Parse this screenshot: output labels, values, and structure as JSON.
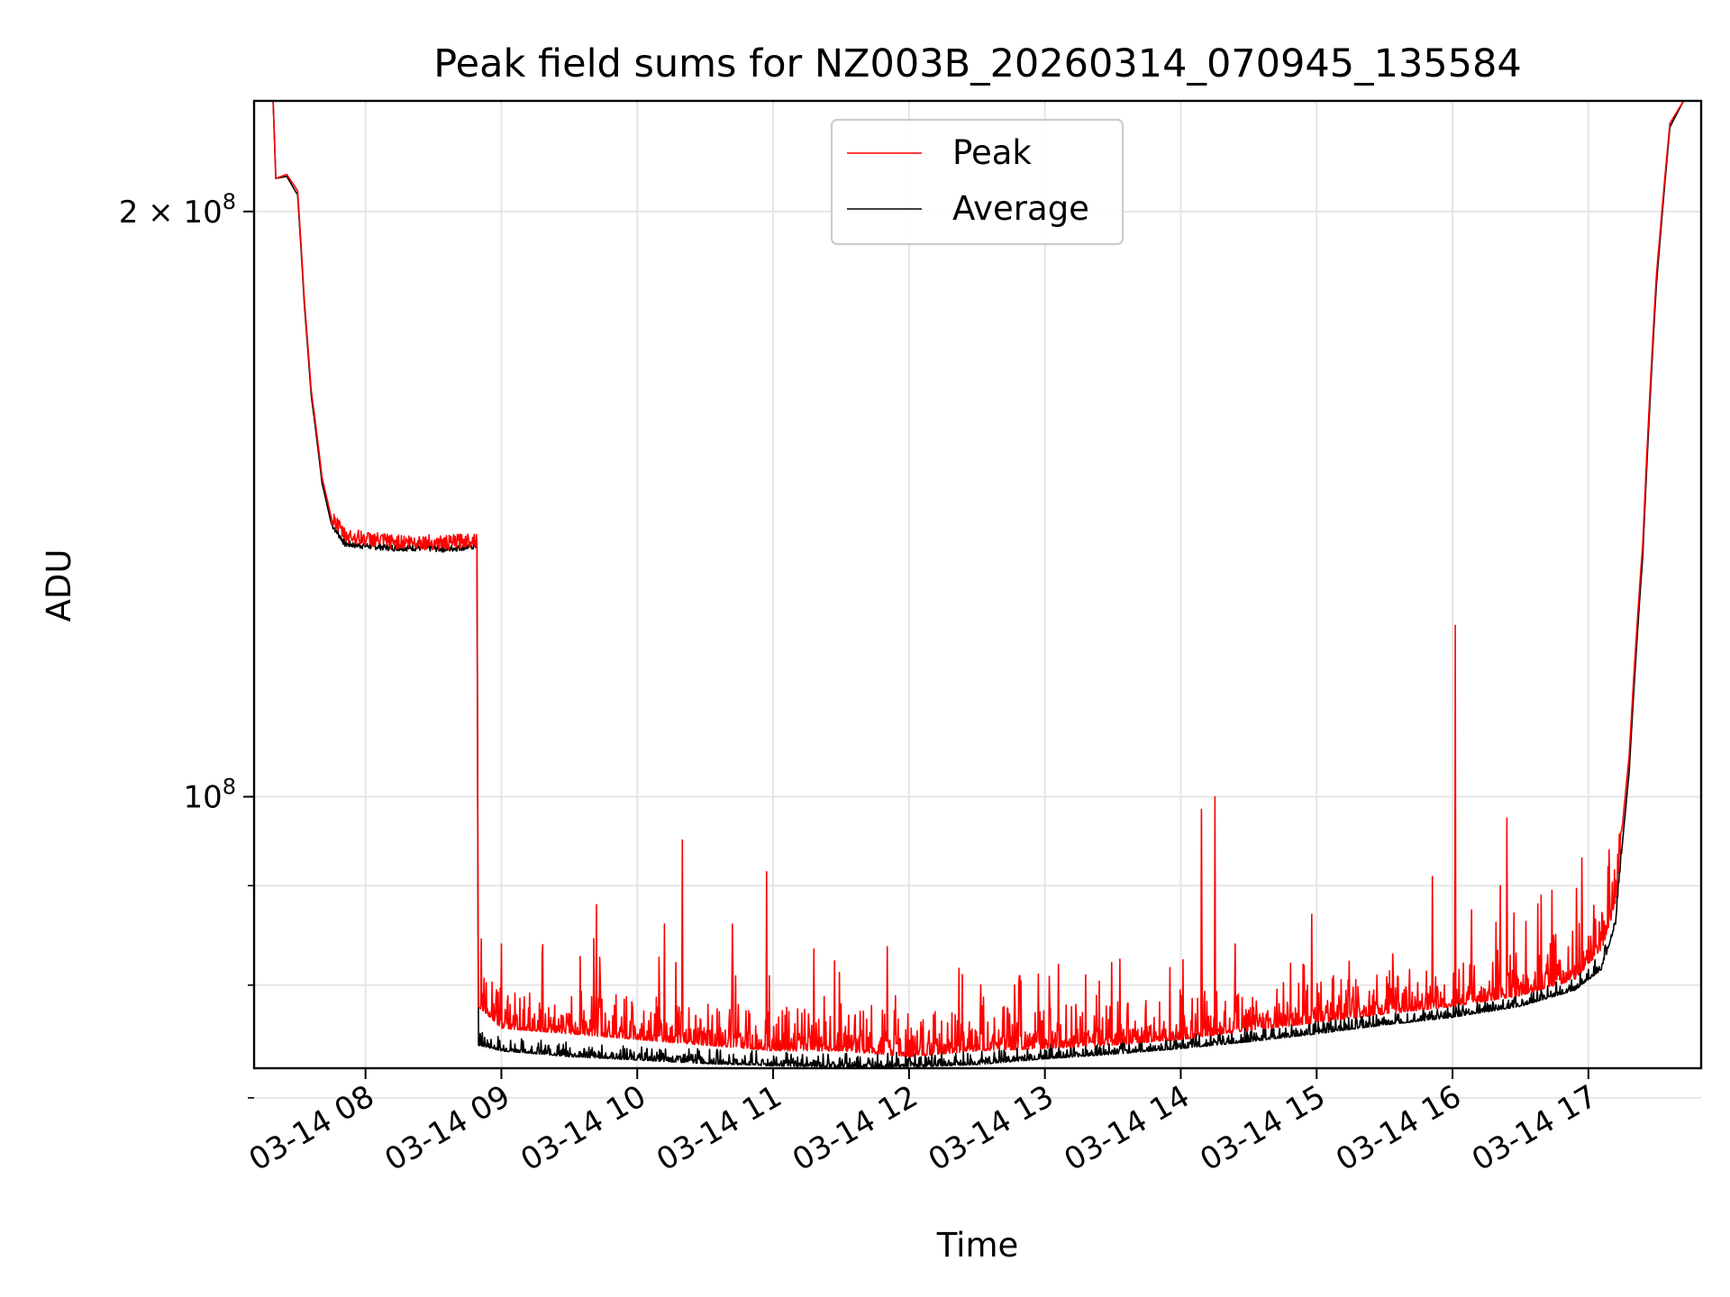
{
  "chart_data": {
    "type": "line",
    "title": "Peak field sums for NZ003B_20260314_070945_135584",
    "xlabel": "Time",
    "ylabel": "ADU",
    "yscale": "log",
    "xlim_hours": [
      7.18,
      17.83
    ],
    "ylim": [
      72500000,
      228000000
    ],
    "grid": true,
    "legend_position": "upper-center",
    "x_ticks": [
      {
        "hour": 8,
        "label": "03-14 08"
      },
      {
        "hour": 9,
        "label": "03-14 09"
      },
      {
        "hour": 10,
        "label": "03-14 10"
      },
      {
        "hour": 11,
        "label": "03-14 11"
      },
      {
        "hour": 12,
        "label": "03-14 12"
      },
      {
        "hour": 13,
        "label": "03-14 13"
      },
      {
        "hour": 14,
        "label": "03-14 14"
      },
      {
        "hour": 15,
        "label": "03-14 15"
      },
      {
        "hour": 16,
        "label": "03-14 16"
      },
      {
        "hour": 17,
        "label": "03-14 17"
      }
    ],
    "y_major_ticks": [
      {
        "value": 100000000,
        "base": "10",
        "exp": "8",
        "mantissa": ""
      },
      {
        "value": 200000000,
        "base": "10",
        "exp": "8",
        "mantissa": "2 × "
      }
    ],
    "y_minor_ticks": [
      70000000,
      80000000,
      90000000
    ],
    "series": [
      {
        "name": "Peak",
        "color": "#ff0000",
        "points": [
          [
            7.18,
            228000000
          ],
          [
            7.32,
            228000000
          ],
          [
            7.34,
            208000000
          ],
          [
            7.42,
            209000000
          ],
          [
            7.5,
            205000000
          ],
          [
            7.55,
            180000000
          ],
          [
            7.6,
            162000000
          ],
          [
            7.68,
            146000000
          ],
          [
            7.75,
            139000000
          ],
          [
            7.85,
            136000000
          ],
          [
            8.0,
            135500000
          ],
          [
            8.2,
            135000000
          ],
          [
            8.4,
            135000000
          ],
          [
            8.6,
            134800000
          ],
          [
            8.82,
            135500000
          ],
          [
            8.83,
            78000000
          ],
          [
            9.0,
            76000000
          ],
          [
            9.5,
            75500000
          ],
          [
            10.0,
            75000000
          ],
          [
            10.5,
            74500000
          ],
          [
            11.0,
            74000000
          ],
          [
            11.5,
            74000000
          ],
          [
            12.0,
            73500000
          ],
          [
            12.5,
            74000000
          ],
          [
            13.0,
            74200000
          ],
          [
            13.5,
            74500000
          ],
          [
            14.0,
            75000000
          ],
          [
            14.5,
            75800000
          ],
          [
            15.0,
            76500000
          ],
          [
            15.5,
            77300000
          ],
          [
            16.0,
            78000000
          ],
          [
            16.5,
            79000000
          ],
          [
            16.9,
            80500000
          ],
          [
            17.1,
            83500000
          ],
          [
            17.2,
            88000000
          ],
          [
            17.3,
            105000000
          ],
          [
            17.4,
            135000000
          ],
          [
            17.5,
            185000000
          ],
          [
            17.6,
            222000000
          ],
          [
            17.7,
            228000000
          ],
          [
            17.83,
            228000000
          ]
        ],
        "spikes": [
          [
            8.85,
            84500000
          ],
          [
            9.0,
            84000000
          ],
          [
            9.3,
            83000000
          ],
          [
            9.7,
            88000000
          ],
          [
            10.2,
            86000000
          ],
          [
            10.33,
            95000000
          ],
          [
            10.7,
            86000000
          ],
          [
            10.95,
            91500000
          ],
          [
            11.3,
            83500000
          ],
          [
            11.9,
            79000000
          ],
          [
            12.7,
            78000000
          ],
          [
            13.1,
            82000000
          ],
          [
            13.55,
            82500000
          ],
          [
            14.15,
            98500000
          ],
          [
            14.25,
            100000000
          ],
          [
            14.4,
            84000000
          ],
          [
            14.9,
            82000000
          ],
          [
            15.85,
            91000000
          ],
          [
            16.02,
            122500000
          ],
          [
            16.35,
            90000000
          ],
          [
            16.4,
            97500000
          ],
          [
            16.65,
            89000000
          ],
          [
            16.95,
            93000000
          ]
        ]
      },
      {
        "name": "Average",
        "color": "#000000",
        "points": [
          [
            7.18,
            228000000
          ],
          [
            7.32,
            228000000
          ],
          [
            7.34,
            208000000
          ],
          [
            7.42,
            208500000
          ],
          [
            7.5,
            204000000
          ],
          [
            7.55,
            179000000
          ],
          [
            7.6,
            161000000
          ],
          [
            7.68,
            145000000
          ],
          [
            7.75,
            138000000
          ],
          [
            7.85,
            134800000
          ],
          [
            8.0,
            134500000
          ],
          [
            8.2,
            134200000
          ],
          [
            8.4,
            134200000
          ],
          [
            8.6,
            134000000
          ],
          [
            8.82,
            134500000
          ],
          [
            8.83,
            74500000
          ],
          [
            9.0,
            74000000
          ],
          [
            9.5,
            73500000
          ],
          [
            10.0,
            73200000
          ],
          [
            10.5,
            72900000
          ],
          [
            11.0,
            72700000
          ],
          [
            11.5,
            72600000
          ],
          [
            12.0,
            72600000
          ],
          [
            12.5,
            72800000
          ],
          [
            13.0,
            73300000
          ],
          [
            13.5,
            73700000
          ],
          [
            14.0,
            74200000
          ],
          [
            14.5,
            74800000
          ],
          [
            15.0,
            75500000
          ],
          [
            15.5,
            76300000
          ],
          [
            16.0,
            77000000
          ],
          [
            16.5,
            78000000
          ],
          [
            16.9,
            79500000
          ],
          [
            17.1,
            81500000
          ],
          [
            17.2,
            86000000
          ],
          [
            17.3,
            103000000
          ],
          [
            17.4,
            133000000
          ],
          [
            17.5,
            183000000
          ],
          [
            17.6,
            221000000
          ],
          [
            17.7,
            228000000
          ],
          [
            17.83,
            228000000
          ]
        ]
      }
    ]
  }
}
